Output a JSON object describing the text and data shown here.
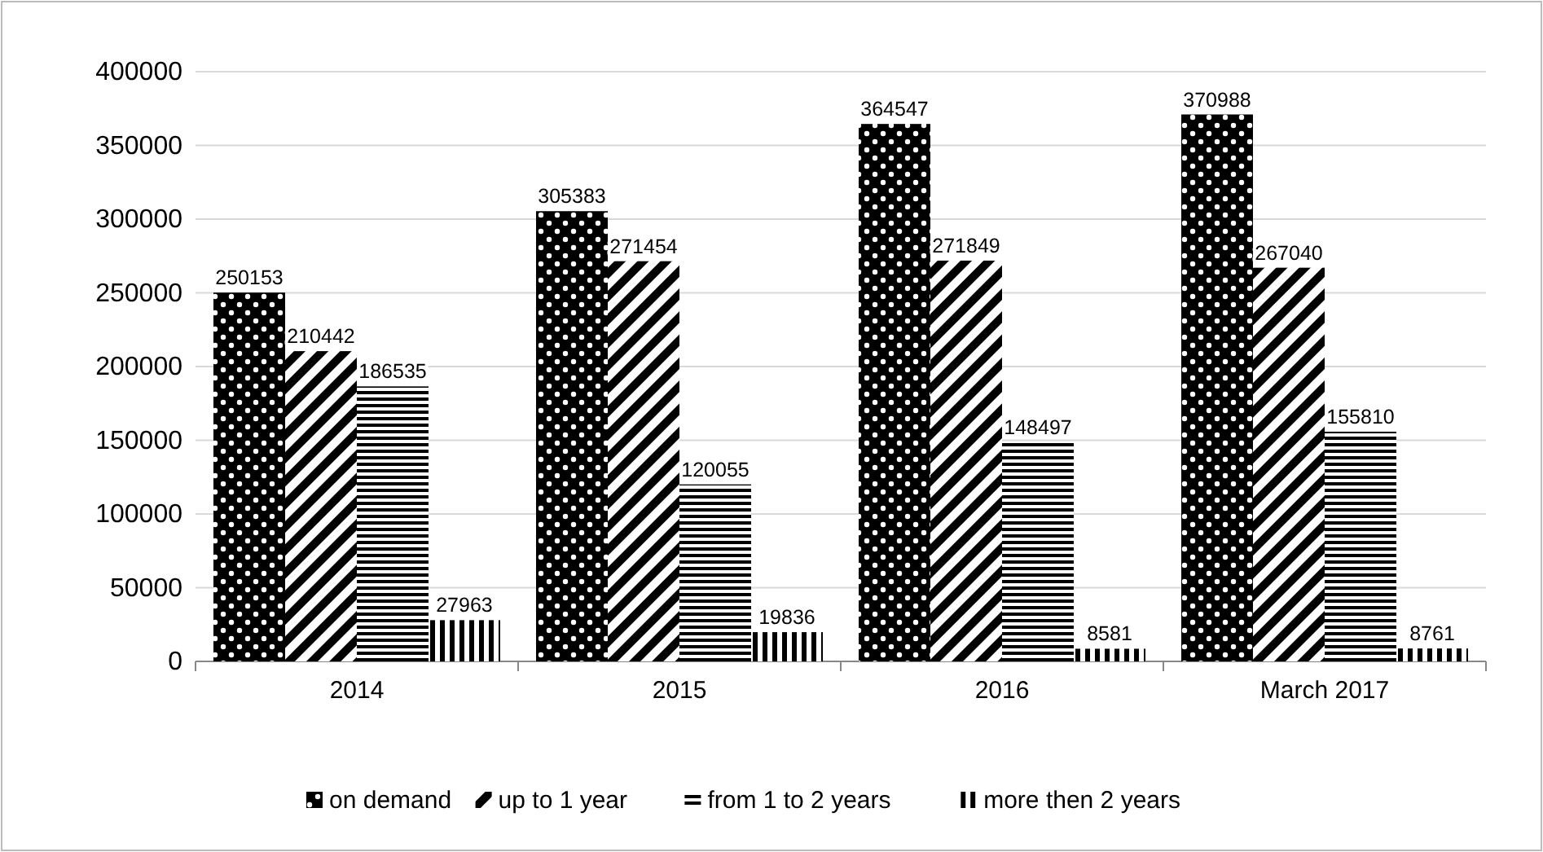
{
  "chart_data": {
    "type": "bar",
    "categories": [
      "2014",
      "2015",
      "2016",
      "March 2017"
    ],
    "series": [
      {
        "name": "on demand",
        "color": "#000000",
        "values": [
          250153,
          305383,
          364547,
          370988
        ]
      },
      {
        "name": "up to 1 year",
        "color": "#000000",
        "values": [
          210442,
          271454,
          271849,
          267040
        ]
      },
      {
        "name": "from 1 to 2 years",
        "color": "#000000",
        "values": [
          186535,
          120055,
          148497,
          155810
        ]
      },
      {
        "name": "more then 2 years",
        "color": "#000000",
        "values": [
          27963,
          19836,
          8581,
          8761
        ]
      }
    ],
    "ylim": [
      0,
      400000
    ],
    "yticks": [
      0,
      50000,
      100000,
      150000,
      200000,
      250000,
      300000,
      350000,
      400000
    ],
    "grid": "y",
    "legend": "bottom",
    "data_labels": true
  }
}
